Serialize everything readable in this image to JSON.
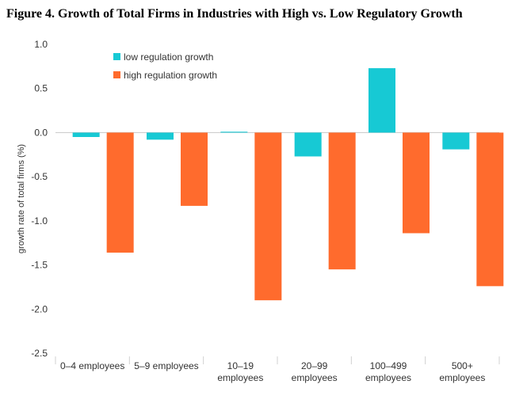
{
  "chart_data": {
    "type": "bar",
    "title": "Figure 4. Growth of Total Firms in Industries with High vs. Low Regulatory Growth",
    "xlabel": "",
    "ylabel": "growth rate of total firms (%)",
    "categories": [
      [
        "0–4 employees"
      ],
      [
        "5–9 employees"
      ],
      [
        "10–19",
        "employees"
      ],
      [
        "20–99",
        "employees"
      ],
      [
        "100–499",
        "employees"
      ],
      [
        "500+",
        "employees"
      ]
    ],
    "series": [
      {
        "name": "low regulation growth",
        "color": "#17c9d4",
        "values": [
          -0.05,
          -0.08,
          0.01,
          -0.27,
          0.73,
          -0.19
        ]
      },
      {
        "name": "high regulation growth",
        "color": "#ff6b2d",
        "values": [
          -1.36,
          -0.83,
          -1.9,
          -1.55,
          -1.14,
          -1.74
        ]
      }
    ],
    "ylim": [
      -2.5,
      1.0
    ],
    "yticks": [
      "1.0",
      "0.5",
      "0.0",
      "-0.5",
      "-1.0",
      "-1.5",
      "-2.0",
      "-2.5"
    ],
    "grid": false,
    "legend": "top-left"
  }
}
